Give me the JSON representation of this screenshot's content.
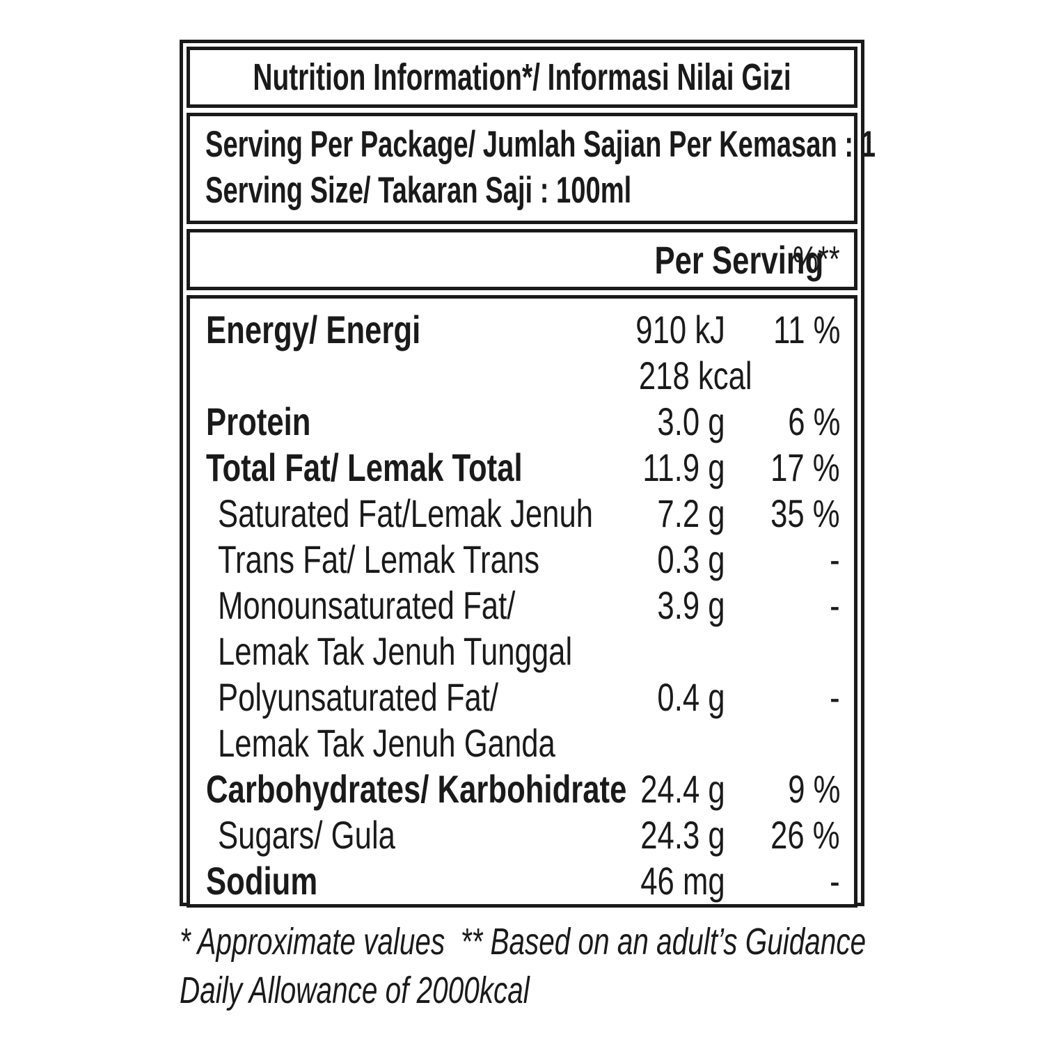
{
  "nutrition_label": {
    "title": "Nutrition Information*/ Informasi Nilai Gizi",
    "serving": {
      "line1": "Serving Per Package/ Jumlah Sajian Per Kemasan : 1",
      "line2": "Serving Size/ Takaran Saji : 100ml"
    },
    "header": {
      "per_serving": "Per Serving",
      "percent_daily": "%**"
    },
    "rows": [
      {
        "label": "Energy/ Energi",
        "value": "910 kJ",
        "pct": "11 %",
        "bold": true,
        "indent": false
      },
      {
        "label": "",
        "value": "218 kcal",
        "pct": "",
        "bold": false,
        "indent": false
      },
      {
        "label": "Protein",
        "value": "3.0 g",
        "pct": "6 %",
        "bold": true,
        "indent": false
      },
      {
        "label": "Total Fat/ Lemak Total",
        "value": "11.9 g",
        "pct": "17 %",
        "bold": true,
        "indent": false
      },
      {
        "label": "Saturated Fat/Lemak Jenuh",
        "value": "7.2 g",
        "pct": "35 %",
        "bold": false,
        "indent": true
      },
      {
        "label": "Trans Fat/ Lemak Trans",
        "value": "0.3 g",
        "pct": "-",
        "bold": false,
        "indent": true
      },
      {
        "label": "Monounsaturated Fat/",
        "value": "3.9 g",
        "pct": "-",
        "bold": false,
        "indent": true
      },
      {
        "label": "Lemak Tak Jenuh Tunggal",
        "value": "",
        "pct": "",
        "bold": false,
        "indent": true
      },
      {
        "label": "Polyunsaturated Fat/",
        "value": "0.4 g",
        "pct": "-",
        "bold": false,
        "indent": true
      },
      {
        "label": "Lemak Tak Jenuh Ganda",
        "value": "",
        "pct": "",
        "bold": false,
        "indent": true
      },
      {
        "label": "Carbohydrates/ Karbohidrate",
        "value": "24.4 g",
        "pct": "9 %",
        "bold": true,
        "indent": false
      },
      {
        "label": "Sugars/ Gula",
        "value": "24.3 g",
        "pct": "26 %",
        "bold": false,
        "indent": true
      },
      {
        "label": "Sodium",
        "value": "46 mg",
        "pct": "-",
        "bold": true,
        "indent": false
      }
    ],
    "footnote": {
      "line1": "* Approximate values  ** Based on an adult’s Guidance",
      "line2": "Daily Allowance of 2000kcal"
    }
  }
}
